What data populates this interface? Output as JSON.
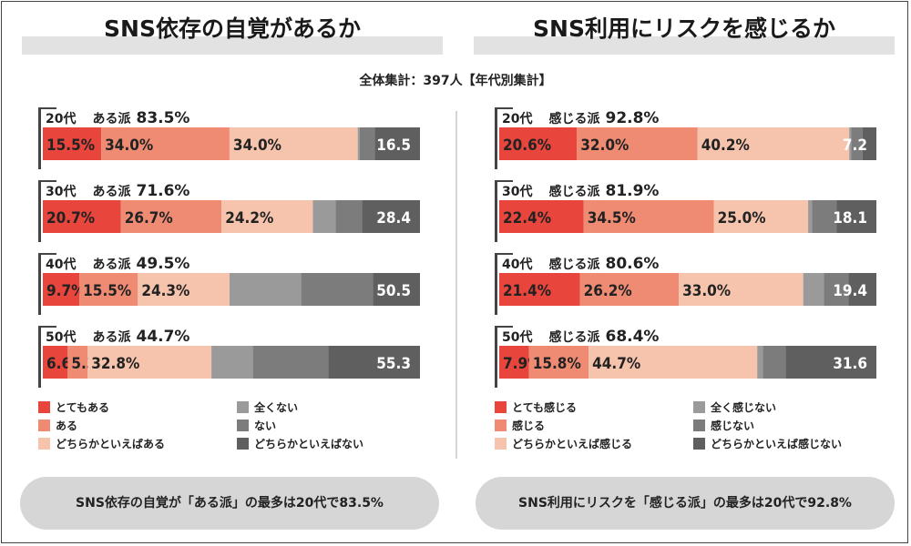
{
  "subtitle": "全体集計：397人【年代別集計】",
  "colors": {
    "pos_strong": "#e8453c",
    "pos": "#ef8b73",
    "pos_weak": "#f6c4ac",
    "neg_strong": "#9a9a9a",
    "neg": "#7c7c7c",
    "neg_weak": "#5f5f5f"
  },
  "panels": [
    {
      "title": "SNS依存の自覚があるか",
      "legend": [
        "とてもある",
        "ある",
        "どちらかといえばある",
        "全くない",
        "ない",
        "どちらかといえばない"
      ],
      "conclusion": "SNS依存の自覚が「ある派」の最多は20代で83.5%",
      "label_prefix": "ある派",
      "groups": [
        {
          "age": "20代",
          "summary": "83.5%",
          "neg_label": "16.5"
        },
        {
          "age": "30代",
          "summary": "71.6%",
          "neg_label": "28.4"
        },
        {
          "age": "40代",
          "summary": "49.5%",
          "neg_label": "50.5"
        },
        {
          "age": "50代",
          "summary": "44.7%",
          "neg_label": "55.3"
        }
      ]
    },
    {
      "title": "SNS利用にリスクを感じるか",
      "legend": [
        "とても感じる",
        "感じる",
        "どちらかといえば感じる",
        "全く感じない",
        "感じない",
        "どちらかといえば感じない"
      ],
      "conclusion": "SNS利用にリスクを「感じる派」の最多は20代で92.8%",
      "label_prefix": "感じる派",
      "groups": [
        {
          "age": "20代",
          "summary": "92.8%",
          "neg_label": "7.2"
        },
        {
          "age": "30代",
          "summary": "81.9%",
          "neg_label": "18.1"
        },
        {
          "age": "40代",
          "summary": "80.6%",
          "neg_label": "19.4"
        },
        {
          "age": "50代",
          "summary": "68.4%",
          "neg_label": "31.6"
        }
      ]
    }
  ],
  "chart_data": [
    {
      "type": "bar",
      "stacked": true,
      "orientation": "horizontal",
      "title": "SNS依存の自覚があるか",
      "categories": [
        "20代",
        "30代",
        "40代",
        "50代"
      ],
      "series": [
        {
          "name": "とてもある",
          "values": [
            15.5,
            20.7,
            9.7,
            6.6
          ],
          "labeled": true
        },
        {
          "name": "ある",
          "values": [
            34.0,
            26.7,
            15.5,
            5.3
          ],
          "labeled": true
        },
        {
          "name": "どちらかといえばある",
          "values": [
            34.0,
            24.2,
            24.3,
            32.8
          ],
          "labeled": true
        },
        {
          "name": "全くない",
          "values": [
            0.5,
            6.0,
            19.0,
            11.0
          ],
          "labeled": false
        },
        {
          "name": "ない",
          "values": [
            4.0,
            7.0,
            19.0,
            20.0
          ],
          "labeled": false
        },
        {
          "name": "どちらかといえばない",
          "values": [
            12.0,
            15.4,
            12.5,
            24.3
          ],
          "labeled": false
        }
      ]
    },
    {
      "type": "bar",
      "stacked": true,
      "orientation": "horizontal",
      "title": "SNS利用にリスクを感じるか",
      "categories": [
        "20代",
        "30代",
        "40代",
        "50代"
      ],
      "series": [
        {
          "name": "とても感じる",
          "values": [
            20.6,
            22.4,
            21.4,
            7.9
          ],
          "labeled": true
        },
        {
          "name": "感じる",
          "values": [
            32.0,
            34.5,
            26.2,
            15.8
          ],
          "labeled": true
        },
        {
          "name": "どちらかといえば感じる",
          "values": [
            40.2,
            25.0,
            33.0,
            44.7
          ],
          "labeled": true
        },
        {
          "name": "全く感じない",
          "values": [
            0.5,
            1.0,
            5.5,
            1.5
          ],
          "labeled": false
        },
        {
          "name": "感じない",
          "values": [
            3.0,
            6.5,
            6.5,
            6.0
          ],
          "labeled": false
        },
        {
          "name": "どちらかといえば感じない",
          "values": [
            3.7,
            10.6,
            7.4,
            24.1
          ],
          "labeled": false
        }
      ]
    }
  ]
}
